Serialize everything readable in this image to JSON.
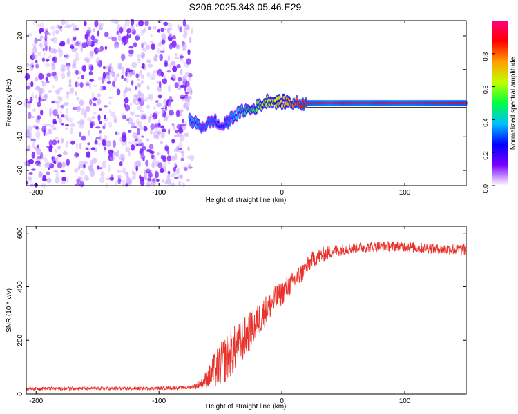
{
  "title": "S206.2025.343.05.46.E29",
  "colors": {
    "trace": "#e8322b",
    "frame": "#000000",
    "background": "#ffffff",
    "colormap": [
      "#ffffff",
      "#7a00ff",
      "#0000ff",
      "#00c0ff",
      "#00ff40",
      "#c0ff00",
      "#ffa000",
      "#ff0000",
      "#ff0080"
    ]
  },
  "chart_data": [
    {
      "type": "heatmap",
      "name": "spectrogram",
      "xlabel": "Height of straight line (km)",
      "ylabel": "Frequency (Hz)",
      "xlim": [
        -208,
        150
      ],
      "ylim": [
        -24.5,
        24.5
      ],
      "xticks": [
        -200,
        -100,
        0,
        100
      ],
      "yticks": [
        -20,
        -10,
        0,
        10,
        20
      ],
      "noise_region_x": [
        -208,
        -73
      ],
      "tone_path": {
        "x": [
          -75,
          -70,
          -65,
          -60,
          -55,
          -50,
          -45,
          -40,
          -35,
          -30,
          -25,
          -20,
          -15,
          -10,
          -5,
          0,
          5,
          10,
          15,
          20,
          30,
          40,
          50,
          60,
          70,
          80,
          90,
          100,
          110,
          120,
          130,
          140,
          150
        ],
        "freq": [
          -5,
          -6,
          -7,
          -6,
          -5,
          -7,
          -6,
          -4,
          -3,
          -2,
          -2,
          -1,
          0,
          1,
          0.5,
          0.3,
          0.5,
          0,
          0,
          0,
          0,
          0,
          0,
          0,
          0,
          0,
          0,
          0,
          0,
          0,
          0,
          0,
          0
        ],
        "amplitude": [
          0.35,
          0.4,
          0.3,
          0.35,
          0.3,
          0.25,
          0.3,
          0.35,
          0.4,
          0.45,
          0.5,
          0.55,
          0.6,
          0.62,
          0.65,
          0.7,
          0.75,
          0.8,
          0.85,
          0.9,
          0.92,
          0.95,
          0.9,
          0.92,
          0.93,
          0.9,
          0.92,
          0.93,
          0.92,
          0.9,
          0.9,
          0.88,
          0.88
        ]
      },
      "colorbar": {
        "label": "Normalized spectral amplitude",
        "ticks": [
          0.0,
          0.2,
          0.4,
          0.6,
          0.8
        ],
        "tick_labels": [
          "0.0",
          "0.2",
          "0.4",
          "0.6",
          "0.8"
        ],
        "range": [
          0,
          1
        ]
      }
    },
    {
      "type": "line",
      "name": "snr",
      "xlabel": "Height of straight line (km)",
      "ylabel": "SNR (10 * v/v)",
      "xlim": [
        -208,
        150
      ],
      "ylim": [
        0,
        625
      ],
      "xticks": [
        -200,
        -100,
        0,
        100
      ],
      "yticks": [
        0,
        200,
        400,
        600
      ],
      "x": [
        -208,
        -190,
        -170,
        -150,
        -130,
        -110,
        -90,
        -75,
        -70,
        -65,
        -60,
        -55,
        -50,
        -45,
        -40,
        -35,
        -30,
        -25,
        -20,
        -15,
        -10,
        -5,
        0,
        5,
        10,
        15,
        20,
        25,
        30,
        40,
        50,
        60,
        70,
        80,
        90,
        100,
        110,
        120,
        130,
        140,
        150
      ],
      "y": [
        20,
        20,
        21,
        20,
        20,
        21,
        22,
        24,
        30,
        40,
        60,
        85,
        110,
        135,
        160,
        185,
        210,
        240,
        270,
        300,
        330,
        355,
        375,
        400,
        420,
        445,
        470,
        500,
        515,
        530,
        540,
        545,
        548,
        550,
        550,
        550,
        545,
        545,
        540,
        540,
        535
      ],
      "noise_amplitude": [
        6,
        6,
        6,
        6,
        6,
        6,
        6,
        7,
        10,
        20,
        40,
        70,
        80,
        90,
        90,
        85,
        80,
        70,
        65,
        60,
        55,
        50,
        45,
        42,
        40,
        38,
        35,
        32,
        30,
        25,
        22,
        20,
        20,
        20,
        20,
        20,
        20,
        20,
        20,
        22,
        25
      ]
    }
  ]
}
